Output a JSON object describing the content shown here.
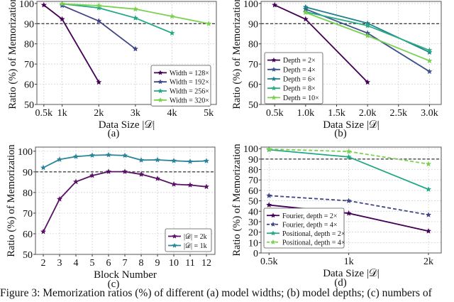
{
  "caption": "Figure 3: Memorization ratios (%) of different (a) model widths; (b) model depths; (c) numbers of",
  "threshold": 90,
  "chart_data": [
    {
      "id": "a",
      "type": "line",
      "subtitle": "(a)",
      "xlabel": "Data Size |𝒟|",
      "ylabel": "Ratio (%) of Memorization",
      "xlim": [
        0.31,
        5.21
      ],
      "ylim": [
        50,
        101
      ],
      "xticks": [
        0.5,
        1,
        2,
        3,
        4,
        5
      ],
      "xtick_labels": [
        "0.5k",
        "1k",
        "2k",
        "3k",
        "4k",
        "5k"
      ],
      "yticks": [
        50,
        60,
        70,
        80,
        90,
        100
      ],
      "grid": true,
      "legend": "bottom-right",
      "series": [
        {
          "name": "Width = 128×",
          "color": "#440154",
          "dash": false,
          "x": [
            0.5,
            1,
            2
          ],
          "values": [
            99.2,
            92.2,
            61
          ]
        },
        {
          "name": "Width = 192×",
          "color": "#414487",
          "dash": false,
          "x": [
            1,
            2,
            3
          ],
          "values": [
            99,
            91.3,
            77.5
          ]
        },
        {
          "name": "Width = 256×",
          "color": "#22a884",
          "dash": false,
          "x": [
            1,
            2,
            3,
            4
          ],
          "values": [
            99.8,
            97.8,
            92.8,
            85.3
          ]
        },
        {
          "name": "Width = 320×",
          "color": "#7ad151",
          "dash": false,
          "x": [
            1,
            2,
            3,
            4,
            5
          ],
          "values": [
            99.8,
            98.9,
            97.2,
            93.6,
            90
          ]
        }
      ]
    },
    {
      "id": "b",
      "type": "line",
      "subtitle": "(b)",
      "xlabel": "Data Size |𝒟|",
      "ylabel": "Ratio (%) of Memorization",
      "xlim": [
        0.28,
        3.19
      ],
      "ylim": [
        50,
        101
      ],
      "xticks": [
        0.5,
        1,
        1.5,
        2,
        2.5,
        3
      ],
      "xtick_labels": [
        "0.5k",
        "1.0k",
        "1.5k",
        "2.0k",
        "2.5k",
        "3.0k"
      ],
      "yticks": [
        50,
        60,
        70,
        80,
        90,
        100
      ],
      "grid": true,
      "legend": "lower-left",
      "series": [
        {
          "name": "Depth = 2×",
          "color": "#440154",
          "dash": false,
          "x": [
            0.5,
            1,
            2
          ],
          "values": [
            99.2,
            92.2,
            61
          ]
        },
        {
          "name": "Depth = 4×",
          "color": "#3b528b",
          "dash": false,
          "x": [
            1,
            2,
            3
          ],
          "values": [
            97.2,
            85.3,
            66.3
          ]
        },
        {
          "name": "Depth = 6×",
          "color": "#21818c",
          "dash": false,
          "x": [
            1,
            2,
            3
          ],
          "values": [
            98.2,
            90.2,
            75.8
          ]
        },
        {
          "name": "Depth = 8×",
          "color": "#27ad81",
          "dash": false,
          "x": [
            1,
            2,
            3
          ],
          "values": [
            95.8,
            89,
            76.8
          ]
        },
        {
          "name": "Depth = 10×",
          "color": "#7ad151",
          "dash": false,
          "x": [
            1,
            2,
            3
          ],
          "values": [
            95.5,
            84,
            71.6
          ]
        }
      ]
    },
    {
      "id": "c",
      "type": "line",
      "subtitle": "(c)",
      "xlabel": "Block Number",
      "ylabel": "Ratio (%) of Memorization",
      "xlim": [
        1.52,
        12.52
      ],
      "ylim": [
        50,
        102
      ],
      "xticks": [
        2,
        3,
        4,
        5,
        6,
        7,
        8,
        9,
        10,
        11,
        12
      ],
      "xtick_labels": [
        "2",
        "3",
        "4",
        "5",
        "6",
        "7",
        "8",
        "9",
        "10",
        "11",
        "12"
      ],
      "yticks": [
        50,
        60,
        70,
        80,
        90,
        100
      ],
      "grid": true,
      "legend": "bottom-right",
      "series": [
        {
          "name": "|𝒟| = 2k",
          "color": "#5a1166",
          "dash": false,
          "x": [
            2,
            3,
            4,
            5,
            6,
            7,
            8,
            9,
            10,
            11,
            12
          ],
          "values": [
            61,
            76.8,
            85.2,
            88.2,
            90.1,
            90.1,
            88.8,
            86.7,
            84,
            83.6,
            82.8
          ]
        },
        {
          "name": "|𝒟| = 1k",
          "color": "#2a8599",
          "dash": false,
          "x": [
            2,
            3,
            4,
            5,
            6,
            7,
            8,
            9,
            10,
            11,
            12
          ],
          "values": [
            92,
            96,
            97.4,
            98,
            98.2,
            97.9,
            95.7,
            95.8,
            95.4,
            95,
            95.3
          ]
        }
      ]
    },
    {
      "id": "d",
      "type": "line",
      "subtitle": "(d)",
      "xlabel": "Data Size |𝒟|",
      "ylabel": "Ratio (%) of Memorization",
      "xlim": [
        -0.1,
        2.16
      ],
      "ylim": [
        0,
        101.5
      ],
      "xticks": [
        0,
        1,
        2
      ],
      "xtick_labels": [
        "0.5k",
        "1k",
        "2k"
      ],
      "yticks": [
        0,
        10,
        20,
        30,
        40,
        50,
        60,
        70,
        80,
        90,
        100
      ],
      "grid": true,
      "legend": "lower-left",
      "series": [
        {
          "name": "Fourier, depth = 2×",
          "color": "#440154",
          "dash": false,
          "x": [
            0,
            1,
            2
          ],
          "values": [
            46,
            38,
            21
          ]
        },
        {
          "name": "Fourier, depth = 4×",
          "color": "#414487",
          "dash": true,
          "x": [
            0,
            1,
            2
          ],
          "values": [
            55,
            50,
            36.5
          ]
        },
        {
          "name": "Positional, depth = 2×",
          "color": "#22a884",
          "dash": false,
          "x": [
            0,
            1,
            2
          ],
          "values": [
            99,
            92,
            61
          ]
        },
        {
          "name": "Positional, depth = 4×",
          "color": "#7ad151",
          "dash": true,
          "x": [
            0,
            1,
            2
          ],
          "values": [
            99.5,
            97.3,
            85.3
          ]
        }
      ]
    }
  ]
}
